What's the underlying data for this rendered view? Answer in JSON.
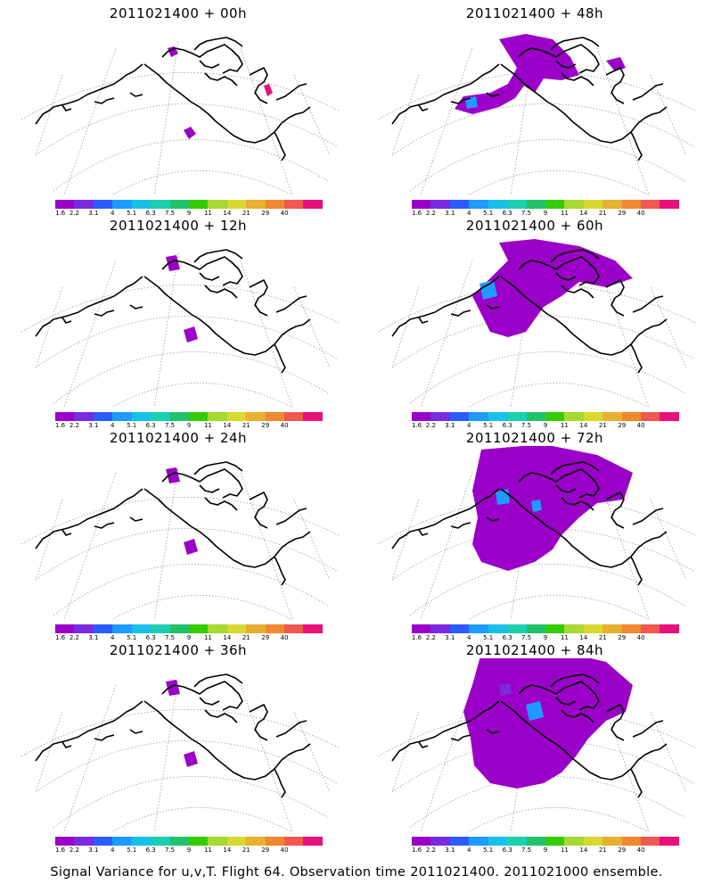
{
  "panels": [
    {
      "title": "2011021400 + 00h",
      "col": 0,
      "row": 0,
      "spread": 0
    },
    {
      "title": "2011021400 + 48h",
      "col": 1,
      "row": 0,
      "spread": 2
    },
    {
      "title": "2011021400 + 12h",
      "col": 0,
      "row": 1,
      "spread": 1
    },
    {
      "title": "2011021400 + 60h",
      "col": 1,
      "row": 1,
      "spread": 3
    },
    {
      "title": "2011021400 + 24h",
      "col": 0,
      "row": 2,
      "spread": 1
    },
    {
      "title": "2011021400 + 72h",
      "col": 1,
      "row": 2,
      "spread": 4
    },
    {
      "title": "2011021400 + 36h",
      "col": 0,
      "row": 3,
      "spread": 1
    },
    {
      "title": "2011021400 + 84h",
      "col": 1,
      "row": 3,
      "spread": 5
    }
  ],
  "colorbar": {
    "labels": [
      "1.6",
      "2.2",
      "3.1",
      "4",
      "5.1",
      "6.3",
      "7.5",
      "9",
      "11",
      "14",
      "21",
      "29",
      "40"
    ],
    "colors": [
      "#9b00c8",
      "#7a2adf",
      "#2b5cff",
      "#1e9bff",
      "#18c0e8",
      "#1ccfb0",
      "#22c26a",
      "#33cc00",
      "#a8d832",
      "#d8d830",
      "#e8b030",
      "#f08830",
      "#f05850",
      "#e8107a"
    ]
  },
  "footer": "Signal Variance for u,v,T. Flight 64. Observation time 2011021400. 2011021000 ensemble."
}
